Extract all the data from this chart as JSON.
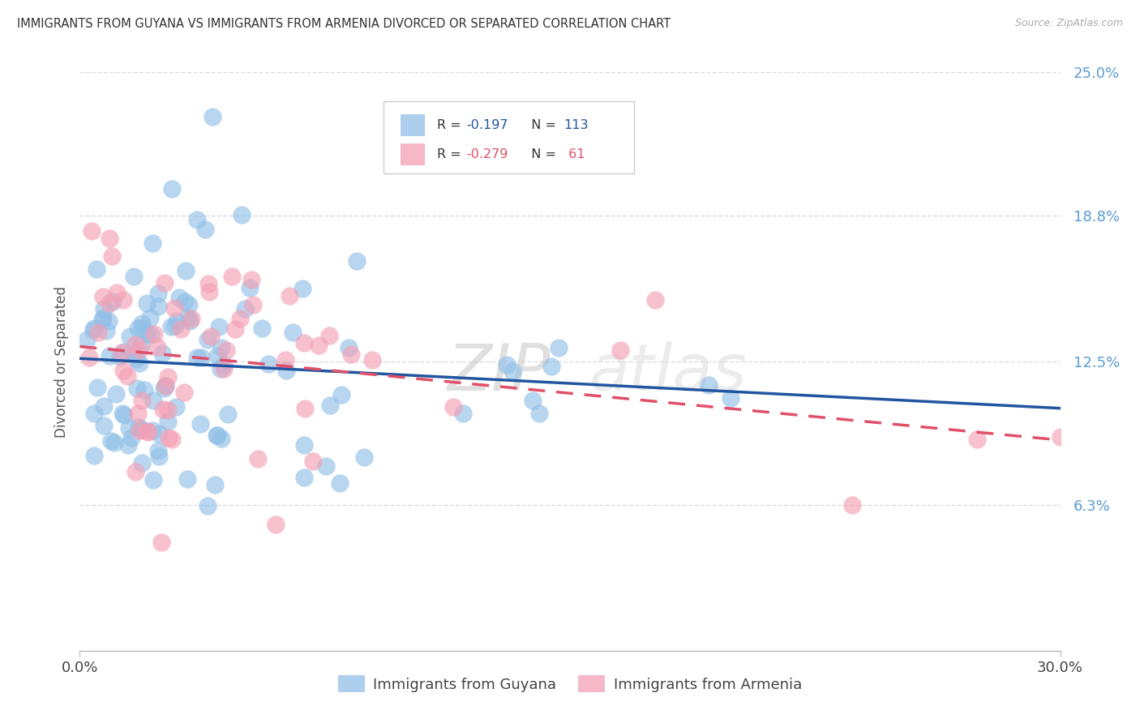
{
  "title": "IMMIGRANTS FROM GUYANA VS IMMIGRANTS FROM ARMENIA DIVORCED OR SEPARATED CORRELATION CHART",
  "source": "Source: ZipAtlas.com",
  "ylabel": "Divorced or Separated",
  "xlim": [
    0.0,
    0.3
  ],
  "ylim": [
    0.0,
    0.25
  ],
  "ytick_labels": [
    "6.3%",
    "12.5%",
    "18.8%",
    "25.0%"
  ],
  "ytick_values": [
    0.063,
    0.125,
    0.188,
    0.25
  ],
  "guyana_R": -0.197,
  "guyana_N": 113,
  "armenia_R": -0.279,
  "armenia_N": 61,
  "guyana_color": "#92C0E8",
  "armenia_color": "#F4A0B5",
  "guyana_line_color": "#2255A0",
  "armenia_line_color": "#E0506A",
  "watermark_zip": "ZIP",
  "watermark_atlas": "atlas",
  "background_color": "#FFFFFF",
  "grid_color": "#DDDDDD",
  "title_color": "#333333",
  "right_label_color": "#5B9BD5"
}
